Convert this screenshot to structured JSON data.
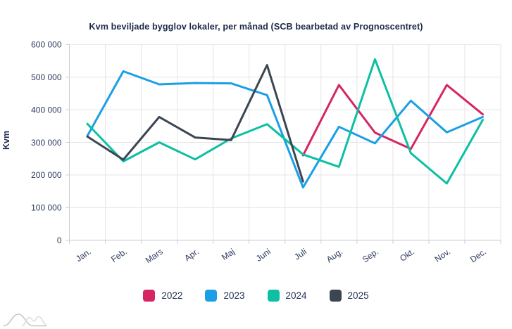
{
  "title": "Kvm beviljade bygglov lokaler, per månad (SCB bearbetad av Prognoscentret)",
  "colors": {
    "title_text": "#1e2b49",
    "axis_text": "#2b3a5c",
    "grid_line": "#e5e5e5",
    "axis_line": "#c9cdd4",
    "background": "#ffffff",
    "watermark_gray_dark": "#c6c6c6",
    "watermark_gray_light": "#dedede"
  },
  "legend": {
    "items": [
      {
        "label": "2022",
        "color": "#d62563"
      },
      {
        "label": "2023",
        "color": "#1a9fe6"
      },
      {
        "label": "2024",
        "color": "#0dbfa3"
      },
      {
        "label": "2025",
        "color": "#3b4652"
      }
    ]
  },
  "chart_data": {
    "type": "line",
    "title": "Kvm beviljade bygglov lokaler, per månad (SCB bearbetad av Prognoscentret)",
    "xlabel": "",
    "ylabel": "Kvm",
    "x_categories": [
      "Jan.",
      "Feb.",
      "Mars",
      "Apr.",
      "Maj",
      "Juni",
      "Juli",
      "Aug.",
      "Sep.",
      "Okt.",
      "Nov.",
      "Dec."
    ],
    "ylim": [
      0,
      600000
    ],
    "y_tick_step": 100000,
    "y_tick_labels": [
      "0",
      "100 000",
      "200 000",
      "300 000",
      "400 000",
      "500 000",
      "600 000"
    ],
    "grid": true,
    "legend_position": "bottom",
    "series": [
      {
        "name": "2022",
        "color": "#d62563",
        "values": [
          null,
          null,
          null,
          null,
          null,
          null,
          260000,
          476000,
          330000,
          280000,
          476000,
          386000
        ]
      },
      {
        "name": "2023",
        "color": "#1a9fe6",
        "values": [
          320000,
          518000,
          478000,
          482000,
          481000,
          445000,
          162000,
          348000,
          297000,
          428000,
          331000,
          378000
        ]
      },
      {
        "name": "2024",
        "color": "#0dbfa3",
        "values": [
          357000,
          242000,
          300000,
          248000,
          312000,
          356000,
          263000,
          225000,
          555000,
          267000,
          174000,
          369000
        ]
      },
      {
        "name": "2025",
        "color": "#3b4652",
        "values": [
          318000,
          247000,
          378000,
          315000,
          307000,
          537000,
          180000,
          null,
          null,
          null,
          null,
          null
        ]
      }
    ]
  }
}
